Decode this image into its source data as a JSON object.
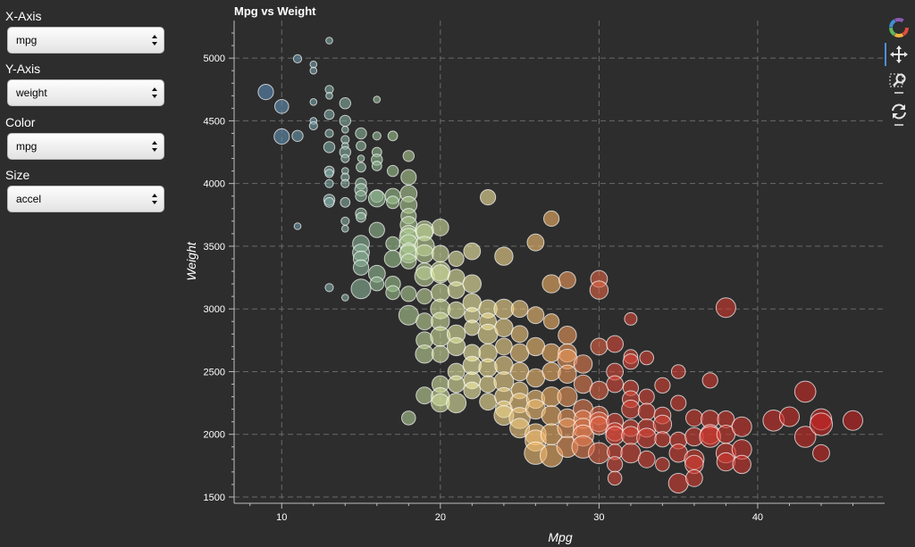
{
  "controls": [
    {
      "label": "X-Axis",
      "value": "mpg"
    },
    {
      "label": "Y-Axis",
      "value": "weight"
    },
    {
      "label": "Color",
      "value": "mpg"
    },
    {
      "label": "Size",
      "value": "accel"
    }
  ],
  "toolbar": {
    "items": [
      "bokeh-logo-icon",
      "pan-icon",
      "box-zoom-icon",
      "reset-icon"
    ]
  },
  "colors": {
    "background": "#2d2d2d",
    "grid": "#6a6a6a",
    "color_scale": [
      "#5b8ab8",
      "#9bc18c",
      "#f5f0a8",
      "#f2b366",
      "#d94a3a",
      "#c8201f"
    ]
  },
  "chart_data": {
    "type": "scatter",
    "title": "Mpg vs Weight",
    "xlabel": "Mpg",
    "ylabel": "Weight",
    "xlim": [
      7,
      48
    ],
    "ylim": [
      1450,
      5300
    ],
    "xticks": [
      10,
      20,
      30,
      40
    ],
    "yticks": [
      1500,
      2000,
      2500,
      3000,
      3500,
      4000,
      4500,
      5000
    ],
    "grid": true,
    "color_by": "mpg",
    "size_by": "accel",
    "points": [
      [
        9,
        4730,
        15
      ],
      [
        10,
        4615,
        14
      ],
      [
        10,
        4375,
        15
      ],
      [
        11,
        4995,
        10
      ],
      [
        11,
        4380,
        12
      ],
      [
        11,
        3660,
        9
      ],
      [
        12,
        4950,
        9
      ],
      [
        12,
        4900,
        9
      ],
      [
        12,
        4650,
        9
      ],
      [
        12,
        4500,
        9
      ],
      [
        12,
        4460,
        10
      ],
      [
        13,
        5140,
        9
      ],
      [
        13,
        4750,
        10
      ],
      [
        13,
        4700,
        9
      ],
      [
        13,
        4550,
        11
      ],
      [
        13,
        4400,
        10
      ],
      [
        13,
        4290,
        12
      ],
      [
        13,
        4100,
        11
      ],
      [
        13,
        4080,
        10
      ],
      [
        13,
        4000,
        10
      ],
      [
        13,
        3870,
        12
      ],
      [
        13,
        3850,
        11
      ],
      [
        13,
        3170,
        10
      ],
      [
        14,
        4640,
        12
      ],
      [
        14,
        4500,
        12
      ],
      [
        14,
        4430,
        9
      ],
      [
        14,
        4350,
        10
      ],
      [
        14,
        4300,
        9
      ],
      [
        14,
        4250,
        12
      ],
      [
        14,
        4200,
        10
      ],
      [
        14,
        4100,
        9
      ],
      [
        14,
        4050,
        10
      ],
      [
        14,
        4000,
        10
      ],
      [
        14,
        3850,
        11
      ],
      [
        14,
        3700,
        10
      ],
      [
        14,
        3640,
        9
      ],
      [
        14,
        3090,
        9
      ],
      [
        15,
        4400,
        12
      ],
      [
        15,
        4300,
        11
      ],
      [
        15,
        4200,
        9
      ],
      [
        15,
        4130,
        11
      ],
      [
        15,
        4000,
        12
      ],
      [
        15,
        3950,
        13
      ],
      [
        15,
        3900,
        12
      ],
      [
        15,
        3760,
        12
      ],
      [
        15,
        3730,
        11
      ],
      [
        15,
        3520,
        16
      ],
      [
        15,
        3450,
        16
      ],
      [
        15,
        3400,
        15
      ],
      [
        15,
        3330,
        15
      ],
      [
        15,
        3160,
        18
      ],
      [
        16,
        4670,
        9
      ],
      [
        16,
        4380,
        10
      ],
      [
        16,
        4250,
        11
      ],
      [
        16,
        4190,
        12
      ],
      [
        16,
        4140,
        11
      ],
      [
        16,
        3900,
        13
      ],
      [
        16,
        3880,
        16
      ],
      [
        16,
        3630,
        15
      ],
      [
        16,
        3280,
        16
      ],
      [
        16,
        3200,
        14
      ],
      [
        17,
        4380,
        11
      ],
      [
        17,
        4100,
        12
      ],
      [
        17,
        3900,
        15
      ],
      [
        17,
        3850,
        13
      ],
      [
        17,
        3520,
        14
      ],
      [
        17,
        3400,
        16
      ],
      [
        17,
        3200,
        15
      ],
      [
        17,
        3130,
        14
      ],
      [
        18,
        4220,
        12
      ],
      [
        18,
        4050,
        15
      ],
      [
        18,
        3920,
        16
      ],
      [
        18,
        3830,
        16
      ],
      [
        18,
        3740,
        15
      ],
      [
        18,
        3670,
        16
      ],
      [
        18,
        3600,
        16
      ],
      [
        18,
        3570,
        17
      ],
      [
        18,
        3520,
        17
      ],
      [
        18,
        3460,
        16
      ],
      [
        18,
        3440,
        17
      ],
      [
        18,
        3380,
        15
      ],
      [
        18,
        3120,
        15
      ],
      [
        18,
        2950,
        18
      ],
      [
        18,
        2130,
        14
      ],
      [
        19,
        3630,
        17
      ],
      [
        19,
        3610,
        16
      ],
      [
        19,
        3500,
        18
      ],
      [
        19,
        3440,
        17
      ],
      [
        19,
        3300,
        16
      ],
      [
        19,
        3260,
        18
      ],
      [
        19,
        3100,
        15
      ],
      [
        19,
        2900,
        16
      ],
      [
        19,
        2750,
        16
      ],
      [
        19,
        2640,
        17
      ],
      [
        19,
        2310,
        16
      ],
      [
        20,
        3650,
        16
      ],
      [
        20,
        3440,
        16
      ],
      [
        20,
        3300,
        18
      ],
      [
        20,
        3280,
        17
      ],
      [
        20,
        3130,
        17
      ],
      [
        20,
        3000,
        18
      ],
      [
        20,
        2900,
        17
      ],
      [
        20,
        2780,
        18
      ],
      [
        20,
        2640,
        16
      ],
      [
        20,
        2400,
        16
      ],
      [
        20,
        2300,
        17
      ],
      [
        20,
        2250,
        17
      ],
      [
        21,
        3400,
        15
      ],
      [
        21,
        3250,
        16
      ],
      [
        21,
        3150,
        16
      ],
      [
        21,
        2990,
        16
      ],
      [
        21,
        2800,
        17
      ],
      [
        21,
        2700,
        17
      ],
      [
        21,
        2500,
        16
      ],
      [
        21,
        2400,
        16
      ],
      [
        21,
        2250,
        18
      ],
      [
        22,
        3460,
        16
      ],
      [
        22,
        3200,
        17
      ],
      [
        22,
        3050,
        17
      ],
      [
        22,
        2950,
        15
      ],
      [
        22,
        2850,
        15
      ],
      [
        22,
        2650,
        16
      ],
      [
        22,
        2550,
        17
      ],
      [
        22,
        2430,
        16
      ],
      [
        22,
        2350,
        16
      ],
      [
        23,
        3890,
        15
      ],
      [
        23,
        3000,
        17
      ],
      [
        23,
        2900,
        16
      ],
      [
        23,
        2800,
        18
      ],
      [
        23,
        2650,
        17
      ],
      [
        23,
        2530,
        17
      ],
      [
        23,
        2400,
        16
      ],
      [
        23,
        2260,
        16
      ],
      [
        24,
        3420,
        17
      ],
      [
        24,
        3000,
        18
      ],
      [
        24,
        2850,
        17
      ],
      [
        24,
        2700,
        16
      ],
      [
        24,
        2550,
        17
      ],
      [
        24,
        2420,
        18
      ],
      [
        24,
        2300,
        17
      ],
      [
        24,
        2200,
        16
      ],
      [
        24,
        2150,
        18
      ],
      [
        25,
        3000,
        16
      ],
      [
        25,
        2800,
        16
      ],
      [
        25,
        2650,
        17
      ],
      [
        25,
        2500,
        17
      ],
      [
        25,
        2350,
        16
      ],
      [
        25,
        2250,
        18
      ],
      [
        25,
        2130,
        19
      ],
      [
        25,
        2050,
        18
      ],
      [
        26,
        3530,
        16
      ],
      [
        26,
        2950,
        16
      ],
      [
        26,
        2700,
        17
      ],
      [
        26,
        2450,
        17
      ],
      [
        26,
        2280,
        17
      ],
      [
        26,
        2200,
        18
      ],
      [
        26,
        2000,
        19
      ],
      [
        26,
        1950,
        19
      ],
      [
        26,
        1850,
        20
      ],
      [
        27,
        3720,
        15
      ],
      [
        27,
        3200,
        17
      ],
      [
        27,
        2900,
        15
      ],
      [
        27,
        2650,
        17
      ],
      [
        27,
        2500,
        17
      ],
      [
        27,
        2300,
        18
      ],
      [
        27,
        2150,
        18
      ],
      [
        27,
        2000,
        19
      ],
      [
        27,
        1830,
        20
      ],
      [
        28,
        3230,
        16
      ],
      [
        28,
        2790,
        17
      ],
      [
        28,
        2650,
        17
      ],
      [
        28,
        2600,
        18
      ],
      [
        28,
        2480,
        17
      ],
      [
        28,
        2300,
        18
      ],
      [
        28,
        2130,
        17
      ],
      [
        28,
        2050,
        18
      ],
      [
        28,
        1900,
        19
      ],
      [
        29,
        2560,
        17
      ],
      [
        29,
        2400,
        17
      ],
      [
        29,
        2200,
        18
      ],
      [
        29,
        2120,
        17
      ],
      [
        29,
        2050,
        18
      ],
      [
        29,
        1990,
        19
      ],
      [
        29,
        1900,
        20
      ],
      [
        30,
        3240,
        16
      ],
      [
        30,
        3150,
        17
      ],
      [
        30,
        2700,
        16
      ],
      [
        30,
        2350,
        17
      ],
      [
        30,
        2150,
        17
      ],
      [
        30,
        2100,
        18
      ],
      [
        30,
        2070,
        17
      ],
      [
        30,
        1850,
        19
      ],
      [
        31,
        2720,
        16
      ],
      [
        31,
        2500,
        16
      ],
      [
        31,
        2400,
        16
      ],
      [
        31,
        2100,
        16
      ],
      [
        31,
        2020,
        17
      ],
      [
        31,
        1990,
        17
      ],
      [
        31,
        1860,
        15
      ],
      [
        31,
        1760,
        15
      ],
      [
        31,
        1650,
        14
      ],
      [
        32,
        2920,
        13
      ],
      [
        32,
        2620,
        14
      ],
      [
        32,
        2580,
        15
      ],
      [
        32,
        2370,
        15
      ],
      [
        32,
        2280,
        16
      ],
      [
        32,
        2200,
        17
      ],
      [
        32,
        2050,
        16
      ],
      [
        32,
        1990,
        17
      ],
      [
        32,
        1850,
        18
      ],
      [
        33,
        2610,
        14
      ],
      [
        33,
        2300,
        15
      ],
      [
        33,
        2180,
        16
      ],
      [
        33,
        2050,
        17
      ],
      [
        33,
        1970,
        18
      ],
      [
        33,
        1800,
        16
      ],
      [
        34,
        2390,
        15
      ],
      [
        34,
        2150,
        16
      ],
      [
        34,
        2080,
        17
      ],
      [
        34,
        1960,
        15
      ],
      [
        34,
        1760,
        14
      ],
      [
        35,
        2500,
        14
      ],
      [
        35,
        2250,
        15
      ],
      [
        35,
        1950,
        16
      ],
      [
        35,
        1850,
        17
      ],
      [
        35,
        1610,
        18
      ],
      [
        36,
        2130,
        16
      ],
      [
        36,
        1980,
        17
      ],
      [
        36,
        1800,
        18
      ],
      [
        36,
        1760,
        17
      ],
      [
        36,
        1650,
        16
      ],
      [
        37,
        2430,
        15
      ],
      [
        37,
        2120,
        17
      ],
      [
        37,
        2000,
        18
      ],
      [
        37,
        1980,
        19
      ],
      [
        38,
        3010,
        18
      ],
      [
        38,
        2120,
        16
      ],
      [
        38,
        2000,
        17
      ],
      [
        38,
        1850,
        18
      ],
      [
        38,
        1780,
        17
      ],
      [
        39,
        2060,
        18
      ],
      [
        39,
        1880,
        18
      ],
      [
        39,
        1760,
        17
      ],
      [
        41,
        2110,
        19
      ],
      [
        42,
        2140,
        18
      ],
      [
        43,
        2340,
        19
      ],
      [
        43,
        1980,
        19
      ],
      [
        44,
        2120,
        19
      ],
      [
        44,
        2080,
        20
      ],
      [
        44,
        1850,
        16
      ],
      [
        46,
        2110,
        18
      ]
    ]
  }
}
